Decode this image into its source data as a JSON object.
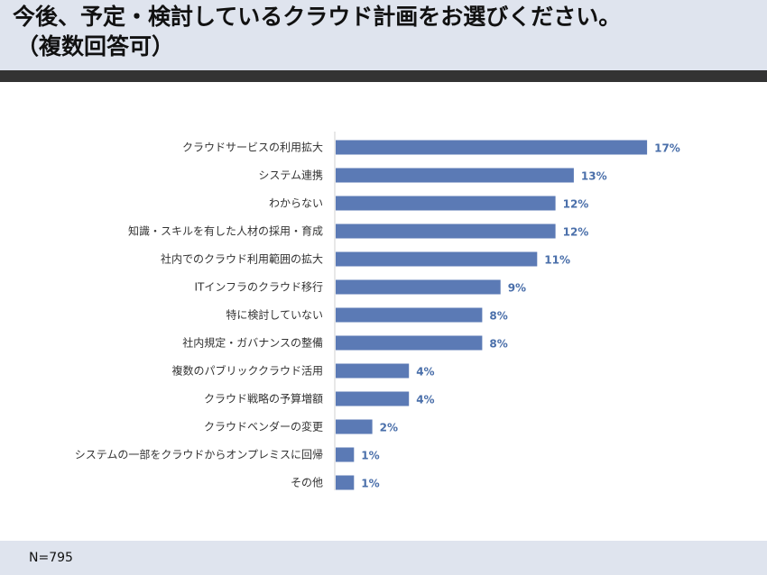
{
  "header": {
    "title_line1": "今後、予定・検討しているクラウド計画をお選びください。",
    "title_line2": "（複数回答可）"
  },
  "footer": {
    "sample_size": "N=795"
  },
  "colors": {
    "bar": "#5b7ab5",
    "value_label": "#4a6faa",
    "header_bg": "#dfe4ee",
    "band": "#333333"
  },
  "chart_data": {
    "type": "bar",
    "orientation": "horizontal",
    "unit": "%",
    "categories": [
      "クラウドサービスの利用拡大",
      "システム連携",
      "わからない",
      "知識・スキルを有した人材の採用・育成",
      "社内でのクラウド利用範囲の拡大",
      "ITインフラのクラウド移行",
      "特に検討していない",
      "社内規定・ガバナンスの整備",
      "複数のパブリッククラウド活用",
      "クラウド戦略の予算増額",
      "クラウドベンダーの変更",
      "システムの一部をクラウドからオンプレミスに回帰",
      "その他"
    ],
    "values": [
      17,
      13,
      12,
      12,
      11,
      9,
      8,
      8,
      4,
      4,
      2,
      1,
      1
    ],
    "value_labels": [
      "17%",
      "13%",
      "12%",
      "12%",
      "11%",
      "9%",
      "8%",
      "8%",
      "4%",
      "4%",
      "2%",
      "1%",
      "1%"
    ],
    "xlim": [
      0,
      18
    ]
  }
}
